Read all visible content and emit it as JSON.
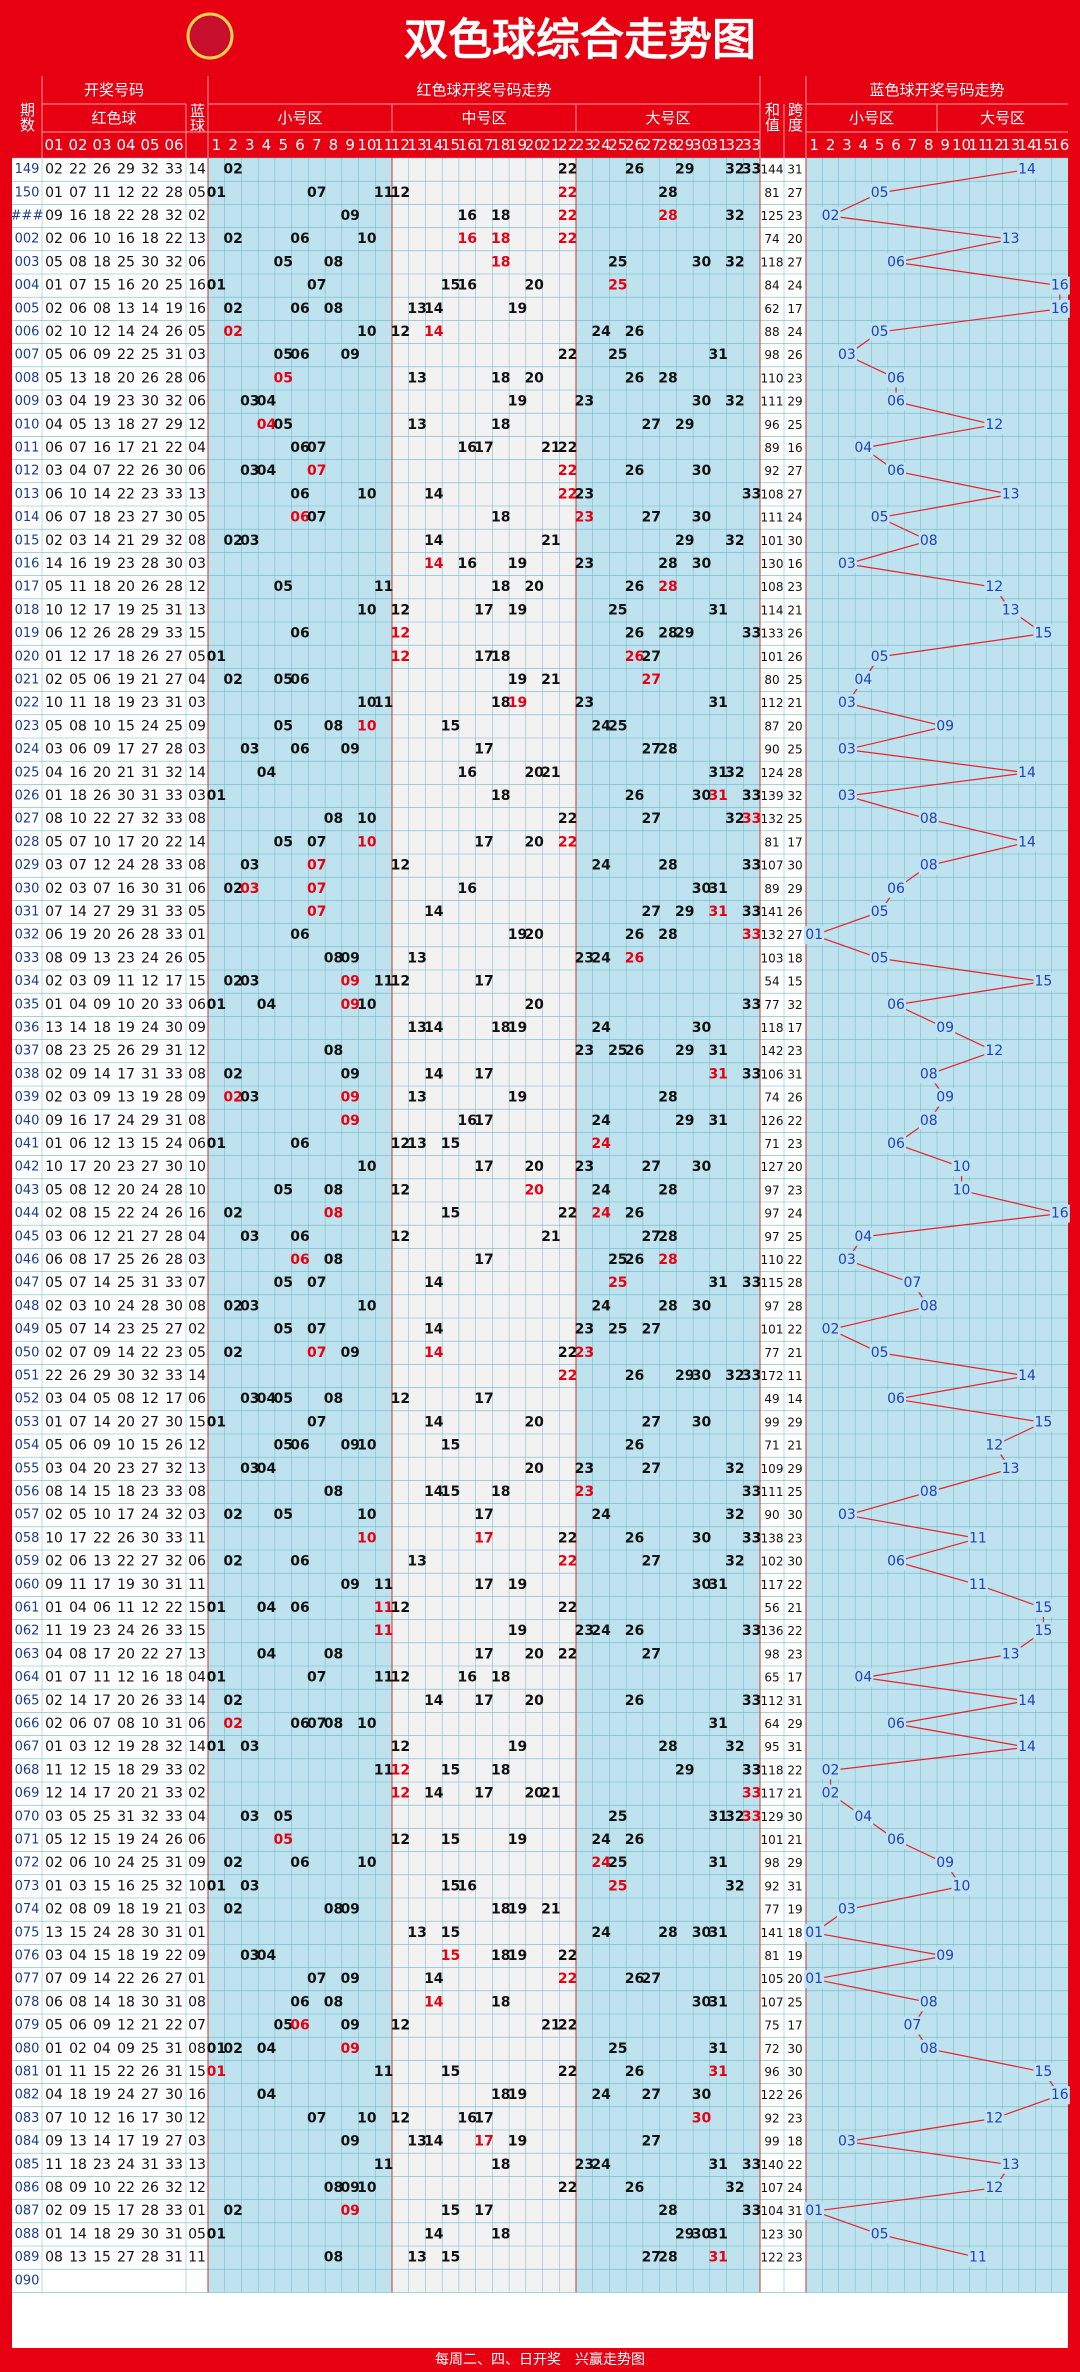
{
  "title": "双色球综合走势图",
  "header": {
    "period": "期数",
    "draw": "开奖号码",
    "red": "红色球",
    "blue": "蓝球",
    "red_trend": "红色球开奖号码走势",
    "zones": [
      "小号区",
      "中号区",
      "大号区"
    ],
    "sum": "和值",
    "span": "跨度",
    "blue_trend": "蓝色球开奖号码走势",
    "blue_zones": [
      "小号区",
      "大号区"
    ],
    "draw_columns": [
      "01",
      "02",
      "03",
      "04",
      "05",
      "06"
    ],
    "red_numbers": [
      1,
      2,
      3,
      4,
      5,
      6,
      7,
      8,
      9,
      10,
      11,
      12,
      13,
      14,
      15,
      16,
      17,
      18,
      19,
      20,
      21,
      22,
      23,
      24,
      25,
      26,
      27,
      28,
      29,
      30,
      31,
      32,
      33
    ],
    "blue_numbers": [
      1,
      2,
      3,
      4,
      5,
      6,
      7,
      8,
      9,
      10,
      11,
      12,
      13,
      14,
      15,
      16
    ]
  },
  "rows": [
    {
      "period": "149",
      "reds": [
        "02",
        "22",
        "26",
        "29",
        "32",
        "33"
      ],
      "blue": "14",
      "sum": 144,
      "span": 31
    },
    {
      "period": "150",
      "reds": [
        "01",
        "07",
        "11",
        "12",
        "22",
        "28"
      ],
      "blue": "05",
      "sum": 81,
      "span": 27
    },
    {
      "period": "###",
      "reds": [
        "09",
        "16",
        "18",
        "22",
        "28",
        "32"
      ],
      "blue": "02",
      "sum": 125,
      "span": 23
    },
    {
      "period": "002",
      "reds": [
        "02",
        "06",
        "10",
        "16",
        "18",
        "22"
      ],
      "blue": "13",
      "sum": 74,
      "span": 20
    },
    {
      "period": "003",
      "reds": [
        "05",
        "08",
        "18",
        "25",
        "30",
        "32"
      ],
      "blue": "06",
      "sum": 118,
      "span": 27
    },
    {
      "period": "004",
      "reds": [
        "01",
        "07",
        "15",
        "16",
        "20",
        "25"
      ],
      "blue": "16",
      "sum": 84,
      "span": 24
    },
    {
      "period": "005",
      "reds": [
        "02",
        "06",
        "08",
        "13",
        "14",
        "19"
      ],
      "blue": "16",
      "sum": 62,
      "span": 17
    },
    {
      "period": "006",
      "reds": [
        "02",
        "10",
        "12",
        "14",
        "24",
        "26"
      ],
      "blue": "05",
      "sum": 88,
      "span": 24
    },
    {
      "period": "007",
      "reds": [
        "05",
        "06",
        "09",
        "22",
        "25",
        "31"
      ],
      "blue": "03",
      "sum": 98,
      "span": 26
    },
    {
      "period": "008",
      "reds": [
        "05",
        "13",
        "18",
        "20",
        "26",
        "28"
      ],
      "blue": "06",
      "sum": 110,
      "span": 23
    },
    {
      "period": "009",
      "reds": [
        "03",
        "04",
        "19",
        "23",
        "30",
        "32"
      ],
      "blue": "06",
      "sum": 111,
      "span": 29
    },
    {
      "period": "010",
      "reds": [
        "04",
        "05",
        "13",
        "18",
        "27",
        "29"
      ],
      "blue": "12",
      "sum": 96,
      "span": 25
    },
    {
      "period": "011",
      "reds": [
        "06",
        "07",
        "16",
        "17",
        "21",
        "22"
      ],
      "blue": "04",
      "sum": 89,
      "span": 16
    },
    {
      "period": "012",
      "reds": [
        "03",
        "04",
        "07",
        "22",
        "26",
        "30"
      ],
      "blue": "06",
      "sum": 92,
      "span": 27
    },
    {
      "period": "013",
      "reds": [
        "06",
        "10",
        "14",
        "22",
        "23",
        "33"
      ],
      "blue": "13",
      "sum": 108,
      "span": 27
    },
    {
      "period": "014",
      "reds": [
        "06",
        "07",
        "18",
        "23",
        "27",
        "30"
      ],
      "blue": "05",
      "sum": 111,
      "span": 24
    },
    {
      "period": "015",
      "reds": [
        "02",
        "03",
        "14",
        "21",
        "29",
        "32"
      ],
      "blue": "08",
      "sum": 101,
      "span": 30
    },
    {
      "period": "016",
      "reds": [
        "14",
        "16",
        "19",
        "23",
        "28",
        "30"
      ],
      "blue": "03",
      "sum": 130,
      "span": 16
    },
    {
      "period": "017",
      "reds": [
        "05",
        "11",
        "18",
        "20",
        "26",
        "28"
      ],
      "blue": "12",
      "sum": 108,
      "span": 23
    },
    {
      "period": "018",
      "reds": [
        "10",
        "12",
        "17",
        "19",
        "25",
        "31"
      ],
      "blue": "13",
      "sum": 114,
      "span": 21
    },
    {
      "period": "019",
      "reds": [
        "06",
        "12",
        "26",
        "28",
        "29",
        "33"
      ],
      "blue": "15",
      "sum": 133,
      "span": 26
    },
    {
      "period": "020",
      "reds": [
        "01",
        "12",
        "17",
        "18",
        "26",
        "27"
      ],
      "blue": "05",
      "sum": 101,
      "span": 26
    },
    {
      "period": "021",
      "reds": [
        "02",
        "05",
        "06",
        "19",
        "21",
        "27"
      ],
      "blue": "04",
      "sum": 80,
      "span": 25
    },
    {
      "period": "022",
      "reds": [
        "10",
        "11",
        "18",
        "19",
        "23",
        "31"
      ],
      "blue": "03",
      "sum": 112,
      "span": 21
    },
    {
      "period": "023",
      "reds": [
        "05",
        "08",
        "10",
        "15",
        "24",
        "25"
      ],
      "blue": "09",
      "sum": 87,
      "span": 20
    },
    {
      "period": "024",
      "reds": [
        "03",
        "06",
        "09",
        "17",
        "27",
        "28"
      ],
      "blue": "03",
      "sum": 90,
      "span": 25
    },
    {
      "period": "025",
      "reds": [
        "04",
        "16",
        "20",
        "21",
        "31",
        "32"
      ],
      "blue": "14",
      "sum": 124,
      "span": 28
    },
    {
      "period": "026",
      "reds": [
        "01",
        "18",
        "26",
        "30",
        "31",
        "33"
      ],
      "blue": "03",
      "sum": 139,
      "span": 32
    },
    {
      "period": "027",
      "reds": [
        "08",
        "10",
        "22",
        "27",
        "32",
        "33"
      ],
      "blue": "08",
      "sum": 132,
      "span": 25
    },
    {
      "period": "028",
      "reds": [
        "05",
        "07",
        "10",
        "17",
        "20",
        "22"
      ],
      "blue": "14",
      "sum": 81,
      "span": 17
    },
    {
      "period": "029",
      "reds": [
        "03",
        "07",
        "12",
        "24",
        "28",
        "33"
      ],
      "blue": "08",
      "sum": 107,
      "span": 30
    },
    {
      "period": "030",
      "reds": [
        "02",
        "03",
        "07",
        "16",
        "30",
        "31"
      ],
      "blue": "06",
      "sum": 89,
      "span": 29
    },
    {
      "period": "031",
      "reds": [
        "07",
        "14",
        "27",
        "29",
        "31",
        "33"
      ],
      "blue": "05",
      "sum": 141,
      "span": 26
    },
    {
      "period": "032",
      "reds": [
        "06",
        "19",
        "20",
        "26",
        "28",
        "33"
      ],
      "blue": "01",
      "sum": 132,
      "span": 27
    },
    {
      "period": "033",
      "reds": [
        "08",
        "09",
        "13",
        "23",
        "24",
        "26"
      ],
      "blue": "05",
      "sum": 103,
      "span": 18
    },
    {
      "period": "034",
      "reds": [
        "02",
        "03",
        "09",
        "11",
        "12",
        "17"
      ],
      "blue": "15",
      "sum": 54,
      "span": 15
    },
    {
      "period": "035",
      "reds": [
        "01",
        "04",
        "09",
        "10",
        "20",
        "33"
      ],
      "blue": "06",
      "sum": 77,
      "span": 32
    },
    {
      "period": "036",
      "reds": [
        "13",
        "14",
        "18",
        "19",
        "24",
        "30"
      ],
      "blue": "09",
      "sum": 118,
      "span": 17
    },
    {
      "period": "037",
      "reds": [
        "08",
        "23",
        "25",
        "26",
        "29",
        "31"
      ],
      "blue": "12",
      "sum": 142,
      "span": 23
    },
    {
      "period": "038",
      "reds": [
        "02",
        "09",
        "14",
        "17",
        "31",
        "33"
      ],
      "blue": "08",
      "sum": 106,
      "span": 31
    },
    {
      "period": "039",
      "reds": [
        "02",
        "03",
        "09",
        "13",
        "19",
        "28"
      ],
      "blue": "09",
      "sum": 74,
      "span": 26
    },
    {
      "period": "040",
      "reds": [
        "09",
        "16",
        "17",
        "24",
        "29",
        "31"
      ],
      "blue": "08",
      "sum": 126,
      "span": 22
    },
    {
      "period": "041",
      "reds": [
        "01",
        "06",
        "12",
        "13",
        "15",
        "24"
      ],
      "blue": "06",
      "sum": 71,
      "span": 23
    },
    {
      "period": "042",
      "reds": [
        "10",
        "17",
        "20",
        "23",
        "27",
        "30"
      ],
      "blue": "10",
      "sum": 127,
      "span": 20
    },
    {
      "period": "043",
      "reds": [
        "05",
        "08",
        "12",
        "20",
        "24",
        "28"
      ],
      "blue": "10",
      "sum": 97,
      "span": 23
    },
    {
      "period": "044",
      "reds": [
        "02",
        "08",
        "15",
        "22",
        "24",
        "26"
      ],
      "blue": "16",
      "sum": 97,
      "span": 24
    },
    {
      "period": "045",
      "reds": [
        "03",
        "06",
        "12",
        "21",
        "27",
        "28"
      ],
      "blue": "04",
      "sum": 97,
      "span": 25
    },
    {
      "period": "046",
      "reds": [
        "06",
        "08",
        "17",
        "25",
        "26",
        "28"
      ],
      "blue": "03",
      "sum": 110,
      "span": 22
    },
    {
      "period": "047",
      "reds": [
        "05",
        "07",
        "14",
        "25",
        "31",
        "33"
      ],
      "blue": "07",
      "sum": 115,
      "span": 28
    },
    {
      "period": "048",
      "reds": [
        "02",
        "03",
        "10",
        "24",
        "28",
        "30"
      ],
      "blue": "08",
      "sum": 97,
      "span": 28
    },
    {
      "period": "049",
      "reds": [
        "05",
        "07",
        "14",
        "23",
        "25",
        "27"
      ],
      "blue": "02",
      "sum": 101,
      "span": 22
    },
    {
      "period": "050",
      "reds": [
        "02",
        "07",
        "09",
        "14",
        "22",
        "23"
      ],
      "blue": "05",
      "sum": 77,
      "span": 21
    },
    {
      "period": "051",
      "reds": [
        "22",
        "26",
        "29",
        "30",
        "32",
        "33"
      ],
      "blue": "14",
      "sum": 172,
      "span": 11
    },
    {
      "period": "052",
      "reds": [
        "03",
        "04",
        "05",
        "08",
        "12",
        "17"
      ],
      "blue": "06",
      "sum": 49,
      "span": 14
    },
    {
      "period": "053",
      "reds": [
        "01",
        "07",
        "14",
        "20",
        "27",
        "30"
      ],
      "blue": "15",
      "sum": 99,
      "span": 29
    },
    {
      "period": "054",
      "reds": [
        "05",
        "06",
        "09",
        "10",
        "15",
        "26"
      ],
      "blue": "12",
      "sum": 71,
      "span": 21
    },
    {
      "period": "055",
      "reds": [
        "03",
        "04",
        "20",
        "23",
        "27",
        "32"
      ],
      "blue": "13",
      "sum": 109,
      "span": 29
    },
    {
      "period": "056",
      "reds": [
        "08",
        "14",
        "15",
        "18",
        "23",
        "33"
      ],
      "blue": "08",
      "sum": 111,
      "span": 25
    },
    {
      "period": "057",
      "reds": [
        "02",
        "05",
        "10",
        "17",
        "24",
        "32"
      ],
      "blue": "03",
      "sum": 90,
      "span": 30
    },
    {
      "period": "058",
      "reds": [
        "10",
        "17",
        "22",
        "26",
        "30",
        "33"
      ],
      "blue": "11",
      "sum": 138,
      "span": 23
    },
    {
      "period": "059",
      "reds": [
        "02",
        "06",
        "13",
        "22",
        "27",
        "32"
      ],
      "blue": "06",
      "sum": 102,
      "span": 30
    },
    {
      "period": "060",
      "reds": [
        "09",
        "11",
        "17",
        "19",
        "30",
        "31"
      ],
      "blue": "11",
      "sum": 117,
      "span": 22
    },
    {
      "period": "061",
      "reds": [
        "01",
        "04",
        "06",
        "11",
        "12",
        "22"
      ],
      "blue": "15",
      "sum": 56,
      "span": 21
    },
    {
      "period": "062",
      "reds": [
        "11",
        "19",
        "23",
        "24",
        "26",
        "33"
      ],
      "blue": "15",
      "sum": 136,
      "span": 22
    },
    {
      "period": "063",
      "reds": [
        "04",
        "08",
        "17",
        "20",
        "22",
        "27"
      ],
      "blue": "13",
      "sum": 98,
      "span": 23
    },
    {
      "period": "064",
      "reds": [
        "01",
        "07",
        "11",
        "12",
        "16",
        "18"
      ],
      "blue": "04",
      "sum": 65,
      "span": 17
    },
    {
      "period": "065",
      "reds": [
        "02",
        "14",
        "17",
        "20",
        "26",
        "33"
      ],
      "blue": "14",
      "sum": 112,
      "span": 31
    },
    {
      "period": "066",
      "reds": [
        "02",
        "06",
        "07",
        "08",
        "10",
        "31"
      ],
      "blue": "06",
      "sum": 64,
      "span": 29
    },
    {
      "period": "067",
      "reds": [
        "01",
        "03",
        "12",
        "19",
        "28",
        "32"
      ],
      "blue": "14",
      "sum": 95,
      "span": 31
    },
    {
      "period": "068",
      "reds": [
        "11",
        "12",
        "15",
        "18",
        "29",
        "33"
      ],
      "blue": "02",
      "sum": 118,
      "span": 22
    },
    {
      "period": "069",
      "reds": [
        "12",
        "14",
        "17",
        "20",
        "21",
        "33"
      ],
      "blue": "02",
      "sum": 117,
      "span": 21
    },
    {
      "period": "070",
      "reds": [
        "03",
        "05",
        "25",
        "31",
        "32",
        "33"
      ],
      "blue": "04",
      "sum": 129,
      "span": 30
    },
    {
      "period": "071",
      "reds": [
        "05",
        "12",
        "15",
        "19",
        "24",
        "26"
      ],
      "blue": "06",
      "sum": 101,
      "span": 21
    },
    {
      "period": "072",
      "reds": [
        "02",
        "06",
        "10",
        "24",
        "25",
        "31"
      ],
      "blue": "09",
      "sum": 98,
      "span": 29
    },
    {
      "period": "073",
      "reds": [
        "01",
        "03",
        "15",
        "16",
        "25",
        "32"
      ],
      "blue": "10",
      "sum": 92,
      "span": 31
    },
    {
      "period": "074",
      "reds": [
        "02",
        "08",
        "09",
        "18",
        "19",
        "21"
      ],
      "blue": "03",
      "sum": 77,
      "span": 19
    },
    {
      "period": "075",
      "reds": [
        "13",
        "15",
        "24",
        "28",
        "30",
        "31"
      ],
      "blue": "01",
      "sum": 141,
      "span": 18
    },
    {
      "period": "076",
      "reds": [
        "03",
        "04",
        "15",
        "18",
        "19",
        "22"
      ],
      "blue": "09",
      "sum": 81,
      "span": 19
    },
    {
      "period": "077",
      "reds": [
        "07",
        "09",
        "14",
        "22",
        "26",
        "27"
      ],
      "blue": "01",
      "sum": 105,
      "span": 20
    },
    {
      "period": "078",
      "reds": [
        "06",
        "08",
        "14",
        "18",
        "30",
        "31"
      ],
      "blue": "08",
      "sum": 107,
      "span": 25
    },
    {
      "period": "079",
      "reds": [
        "05",
        "06",
        "09",
        "12",
        "21",
        "22"
      ],
      "blue": "07",
      "sum": 75,
      "span": 17
    },
    {
      "period": "080",
      "reds": [
        "01",
        "02",
        "04",
        "09",
        "25",
        "31"
      ],
      "blue": "08",
      "sum": 72,
      "span": 30
    },
    {
      "period": "081",
      "reds": [
        "01",
        "11",
        "15",
        "22",
        "26",
        "31"
      ],
      "blue": "15",
      "sum": 96,
      "span": 30
    },
    {
      "period": "082",
      "reds": [
        "04",
        "18",
        "19",
        "24",
        "27",
        "30"
      ],
      "blue": "16",
      "sum": 122,
      "span": 26
    },
    {
      "period": "083",
      "reds": [
        "07",
        "10",
        "12",
        "16",
        "17",
        "30"
      ],
      "blue": "12",
      "sum": 92,
      "span": 23
    },
    {
      "period": "084",
      "reds": [
        "09",
        "13",
        "14",
        "17",
        "19",
        "27"
      ],
      "blue": "03",
      "sum": 99,
      "span": 18
    },
    {
      "period": "085",
      "reds": [
        "11",
        "18",
        "23",
        "24",
        "31",
        "33"
      ],
      "blue": "13",
      "sum": 140,
      "span": 22
    },
    {
      "period": "086",
      "reds": [
        "08",
        "09",
        "10",
        "22",
        "26",
        "32"
      ],
      "blue": "12",
      "sum": 107,
      "span": 24
    },
    {
      "period": "087",
      "reds": [
        "02",
        "09",
        "15",
        "17",
        "28",
        "33"
      ],
      "blue": "01",
      "sum": 104,
      "span": 31
    },
    {
      "period": "088",
      "reds": [
        "01",
        "14",
        "18",
        "29",
        "30",
        "31"
      ],
      "blue": "05",
      "sum": 123,
      "span": 30
    },
    {
      "period": "089",
      "reds": [
        "08",
        "13",
        "15",
        "27",
        "28",
        "31"
      ],
      "blue": "11",
      "sum": 122,
      "span": 23
    },
    {
      "period": "090"
    }
  ],
  "footer": "每周二、四、日开奖　兴赢走势图"
}
